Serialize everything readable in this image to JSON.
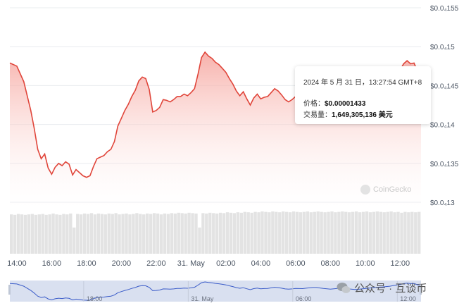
{
  "chart_data": {
    "type": "line",
    "y_ticks": [
      "$0.0₄155",
      "$0.0₄15",
      "$0.0₄145",
      "$0.0₄14",
      "$0.0₄135",
      "$0.0₄13"
    ],
    "y_tick_values": [
      1.55e-05,
      1.5e-05,
      1.45e-05,
      1.4e-05,
      1.35e-05,
      1.3e-05
    ],
    "ylim": [
      1.29e-05,
      1.56e-05
    ],
    "x_tick_labels": [
      "14:00",
      "16:00",
      "18:00",
      "20:00",
      "22:00",
      "31. May",
      "02:00",
      "04:00",
      "06:00",
      "08:00",
      "10:00",
      "12:00"
    ],
    "x_tick_positions": [
      0,
      2,
      4,
      6,
      8,
      10,
      12,
      14,
      16,
      18,
      20,
      22
    ],
    "navigator_labels": [
      "18:00",
      "31. May",
      "06:00",
      "12:00"
    ],
    "navigator_label_positions": [
      4,
      10,
      16,
      22
    ],
    "xlim": [
      -0.4,
      23.2
    ],
    "series": [
      {
        "x": [
          -0.4,
          0.0,
          0.4,
          0.8,
          1.0,
          1.2,
          1.4,
          1.6,
          1.8,
          2.0,
          2.2,
          2.4,
          2.6,
          2.8,
          3.0,
          3.2,
          3.4,
          3.6,
          3.8,
          4.0,
          4.2,
          4.4,
          4.6,
          4.8,
          5.0,
          5.2,
          5.4,
          5.6,
          5.8,
          6.0,
          6.2,
          6.4,
          6.6,
          6.8,
          7.0,
          7.2,
          7.4,
          7.6,
          7.8,
          8.0,
          8.2,
          8.4,
          8.6,
          8.8,
          9.0,
          9.2,
          9.4,
          9.6,
          9.8,
          10.0,
          10.2,
          10.4,
          10.6,
          10.8,
          11.0,
          11.2,
          11.4,
          11.6,
          11.8,
          12.0,
          12.2,
          12.4,
          12.6,
          12.8,
          13.0,
          13.2,
          13.4,
          13.6,
          13.8,
          14.0,
          14.2,
          14.4,
          14.6,
          14.8,
          15.0,
          15.2,
          15.4,
          15.6,
          15.8,
          16.0,
          16.2,
          16.4,
          16.6,
          16.8,
          17.0,
          17.2,
          17.4,
          17.6,
          17.8,
          18.0,
          18.2,
          18.4,
          18.6,
          18.8,
          19.0,
          19.2,
          19.4,
          19.6,
          19.8,
          20.0,
          20.2,
          20.4,
          20.6,
          20.8,
          21.0,
          21.2,
          21.4,
          21.6,
          21.8,
          22.0,
          22.2,
          22.4,
          22.6,
          22.8,
          23.0,
          23.2
        ],
        "y": [
          1.479e-05,
          1.475e-05,
          1.455e-05,
          1.418e-05,
          1.395e-05,
          1.368e-05,
          1.356e-05,
          1.362e-05,
          1.344e-05,
          1.336e-05,
          1.345e-05,
          1.35e-05,
          1.347e-05,
          1.352e-05,
          1.349e-05,
          1.335e-05,
          1.342e-05,
          1.338e-05,
          1.334e-05,
          1.332e-05,
          1.334e-05,
          1.346e-05,
          1.356e-05,
          1.358e-05,
          1.36e-05,
          1.365e-05,
          1.368e-05,
          1.378e-05,
          1.398e-05,
          1.408e-05,
          1.418e-05,
          1.426e-05,
          1.436e-05,
          1.444e-05,
          1.456e-05,
          1.461e-05,
          1.459e-05,
          1.445e-05,
          1.416e-05,
          1.418e-05,
          1.422e-05,
          1.432e-05,
          1.431e-05,
          1.429e-05,
          1.432e-05,
          1.436e-05,
          1.436e-05,
          1.439e-05,
          1.437e-05,
          1.441e-05,
          1.446e-05,
          1.465e-05,
          1.486e-05,
          1.493e-05,
          1.488e-05,
          1.485e-05,
          1.48e-05,
          1.477e-05,
          1.472e-05,
          1.467e-05,
          1.459e-05,
          1.452e-05,
          1.443e-05,
          1.437e-05,
          1.442e-05,
          1.433e-05,
          1.425e-05,
          1.434e-05,
          1.439e-05,
          1.433e-05,
          1.435e-05,
          1.436e-05,
          1.441e-05,
          1.446e-05,
          1.443e-05,
          1.438e-05,
          1.432e-05,
          1.429e-05,
          1.432e-05,
          1.436e-05,
          1.435e-05,
          1.434e-05,
          1.438e-05,
          1.441e-05,
          1.444e-05,
          1.444e-05,
          1.44e-05,
          1.436e-05,
          1.433e-05,
          1.43e-05,
          1.433e-05,
          1.436e-05,
          1.437e-05,
          1.436e-05,
          1.433e-05,
          1.43e-05,
          1.427e-05,
          1.428e-05,
          1.432e-05,
          1.435e-05,
          1.438e-05,
          1.442e-05,
          1.445e-05,
          1.447e-05,
          1.449e-05,
          1.452e-05,
          1.455e-05,
          1.46e-05,
          1.465e-05,
          1.47e-05,
          1.478e-05,
          1.482e-05,
          1.478e-05,
          1.479e-05,
          1.468e-05,
          1.462e-05
        ]
      }
    ],
    "volume": {
      "x_start": -0.4,
      "x_end": 23.2,
      "bar_count": 118,
      "relative_values": [
        0.93,
        0.92,
        0.94,
        0.93,
        0.92,
        0.93,
        0.94,
        0.92,
        0.93,
        0.94,
        0.92,
        0.93,
        0.95,
        0.93,
        0.92,
        0.94,
        0.93,
        0.95,
        0.62,
        0.94,
        0.93,
        0.95,
        0.94,
        0.96,
        0.93,
        0.95,
        0.94,
        0.93,
        0.95,
        0.94,
        0.96,
        0.93,
        0.94,
        0.95,
        0.93,
        0.94,
        0.96,
        0.94,
        0.93,
        0.95,
        0.94,
        0.96,
        0.95,
        0.93,
        0.95,
        0.94,
        0.96,
        0.95,
        0.97,
        0.96,
        0.95,
        0.97,
        0.96,
        0.95,
        0.62,
        0.96,
        0.95,
        0.97,
        0.96,
        0.95,
        0.97,
        0.96,
        0.98,
        0.97,
        0.96,
        0.98,
        0.97,
        0.99,
        0.98,
        0.97,
        0.99,
        0.98,
        1.0,
        0.99,
        0.98,
        1.0,
        0.99,
        0.98,
        1.0,
        0.99,
        0.98,
        1.0,
        0.99,
        0.98,
        0.99,
        1.0,
        0.98,
        0.99,
        1.0,
        0.99,
        0.98,
        0.99,
        1.0,
        0.98,
        0.99,
        1.0,
        0.99,
        0.98,
        0.99,
        1.0,
        0.98,
        0.99,
        1.0,
        0.98,
        0.99,
        1.0,
        0.99,
        0.98,
        0.99,
        1.0,
        0.98,
        0.99,
        0.97,
        0.99,
        0.98,
        0.99,
        0.98,
        0.99
      ]
    },
    "grid": true,
    "legend": "none"
  },
  "colors": {
    "line": "#e0453a",
    "fill_top": "#f6a39c",
    "volume": "#e3e3e3",
    "navigator_line": "#3b5cc9",
    "navigator_bg": "#d9e0f0",
    "axis_text": "#4b5563",
    "grid": "#e9ecef"
  },
  "tooltip": {
    "date": "2024 年 5 月 31 日，13:27:54 GMT+8",
    "price_label": "价格：",
    "price_value": "$0.00001433",
    "volume_label": "交易量：",
    "volume_value": "1,649,305,136 美元"
  },
  "watermark": "CoinGecko",
  "wechat_text": "公众号 · 互谈币"
}
